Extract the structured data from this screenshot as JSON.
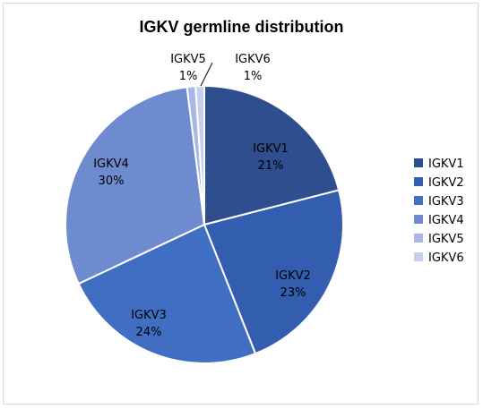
{
  "chart_data": {
    "type": "pie",
    "title": "IGKV germline distribution",
    "categories": [
      "IGKV1",
      "IGKV2",
      "IGKV3",
      "IGKV4",
      "IGKV5",
      "IGKV6"
    ],
    "values": [
      21,
      23,
      24,
      30,
      1,
      1
    ],
    "value_labels": [
      "21%",
      "23%",
      "24%",
      "30%",
      "1%",
      "1%"
    ],
    "colors": [
      "#2e4e8f",
      "#335eb0",
      "#3f6ec3",
      "#6f8bd0",
      "#a9b7e6",
      "#c6d0ee"
    ],
    "legend_position": "right"
  }
}
